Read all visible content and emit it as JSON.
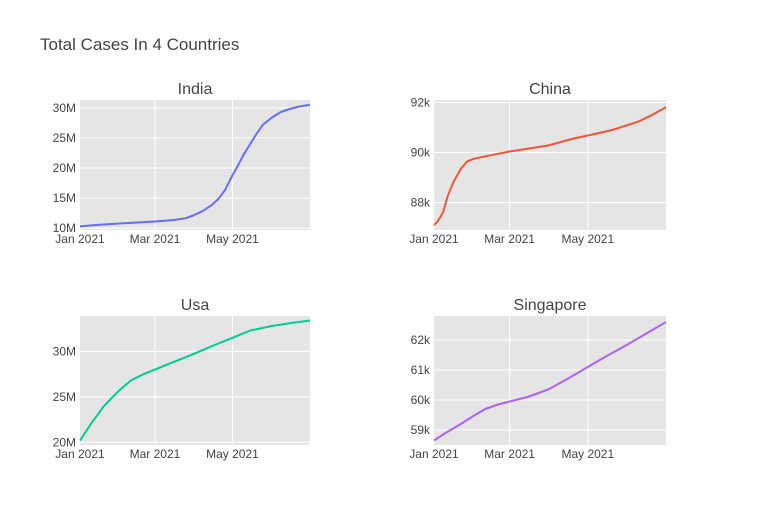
{
  "title": "Total Cases In 4 Countries",
  "colors": {
    "plot_bg": "#e5e5e5",
    "grid": "#ffffff",
    "text": "#444444"
  },
  "chart_data": [
    {
      "type": "line",
      "title": "India",
      "color": "#636efa",
      "x_tick_labels": [
        "Jan 2021",
        "Mar 2021",
        "May 2021"
      ],
      "y_tick_labels": [
        "10M",
        "15M",
        "20M",
        "25M",
        "30M"
      ],
      "y_ticks": [
        10000000,
        15000000,
        20000000,
        25000000,
        30000000
      ],
      "x_range": [
        "2021-01-01",
        "2021-07-01"
      ],
      "y_range": [
        9700000,
        31300000
      ],
      "x": [
        "2021-01-01",
        "2021-01-15",
        "2021-02-01",
        "2021-02-15",
        "2021-03-01",
        "2021-03-15",
        "2021-03-25",
        "2021-04-01",
        "2021-04-08",
        "2021-04-15",
        "2021-04-20",
        "2021-04-25",
        "2021-05-01",
        "2021-05-05",
        "2021-05-10",
        "2021-05-15",
        "2021-05-20",
        "2021-05-25",
        "2021-06-01",
        "2021-06-08",
        "2021-06-15",
        "2021-06-22",
        "2021-07-01"
      ],
      "y": [
        10300000,
        10550000,
        10780000,
        10950000,
        11120000,
        11350000,
        11650000,
        12200000,
        12900000,
        13900000,
        14900000,
        16300000,
        18800000,
        20300000,
        22300000,
        24000000,
        25700000,
        27200000,
        28400000,
        29300000,
        29800000,
        30200000,
        30500000
      ]
    },
    {
      "type": "line",
      "title": "China",
      "color": "#ef553b",
      "x_tick_labels": [
        "Jan 2021",
        "Mar 2021",
        "May 2021"
      ],
      "y_tick_labels": [
        "88k",
        "90k",
        "92k"
      ],
      "y_ticks": [
        88000,
        90000,
        92000
      ],
      "x_range": [
        "2021-01-01",
        "2021-07-01"
      ],
      "y_range": [
        86900,
        92100
      ],
      "x": [
        "2021-01-01",
        "2021-01-04",
        "2021-01-08",
        "2021-01-12",
        "2021-01-16",
        "2021-01-22",
        "2021-01-27",
        "2021-02-01",
        "2021-02-10",
        "2021-02-20",
        "2021-03-01",
        "2021-03-15",
        "2021-03-31",
        "2021-04-10",
        "2021-04-20",
        "2021-05-01",
        "2021-05-10",
        "2021-05-20",
        "2021-05-31",
        "2021-06-10",
        "2021-06-20",
        "2021-06-30",
        "2021-07-01"
      ],
      "y": [
        87100,
        87250,
        87600,
        88300,
        88800,
        89350,
        89650,
        89750,
        89850,
        89950,
        90040,
        90150,
        90280,
        90420,
        90560,
        90680,
        90780,
        90900,
        91080,
        91250,
        91500,
        91780,
        91830
      ]
    },
    {
      "type": "line",
      "title": "Usa",
      "color": "#00cc96",
      "x_tick_labels": [
        "Jan 2021",
        "Mar 2021",
        "May 2021"
      ],
      "y_tick_labels": [
        "20M",
        "25M",
        "30M"
      ],
      "y_ticks": [
        20000000,
        25000000,
        30000000
      ],
      "x_range": [
        "2021-01-01",
        "2021-07-01"
      ],
      "y_range": [
        19700000,
        33900000
      ],
      "x": [
        "2021-01-01",
        "2021-01-10",
        "2021-01-20",
        "2021-01-31",
        "2021-02-10",
        "2021-02-20",
        "2021-03-01",
        "2021-03-15",
        "2021-03-31",
        "2021-04-15",
        "2021-05-01",
        "2021-05-15",
        "2021-06-01",
        "2021-06-15",
        "2021-07-01"
      ],
      "y": [
        20200000,
        22100000,
        24000000,
        25600000,
        26800000,
        27500000,
        28000000,
        28800000,
        29700000,
        30600000,
        31500000,
        32300000,
        32800000,
        33100000,
        33400000
      ]
    },
    {
      "type": "line",
      "title": "Singapore",
      "color": "#ab63fa",
      "x_tick_labels": [
        "Jan 2021",
        "Mar 2021",
        "May 2021"
      ],
      "y_tick_labels": [
        "59k",
        "60k",
        "61k",
        "62k"
      ],
      "y_ticks": [
        59000,
        60000,
        61000,
        62000
      ],
      "x_range": [
        "2021-01-01",
        "2021-07-01"
      ],
      "y_range": [
        58500,
        62800
      ],
      "x": [
        "2021-01-01",
        "2021-01-10",
        "2021-01-20",
        "2021-01-31",
        "2021-02-10",
        "2021-02-20",
        "2021-03-01",
        "2021-03-15",
        "2021-03-31",
        "2021-04-15",
        "2021-05-01",
        "2021-05-15",
        "2021-06-01",
        "2021-06-15",
        "2021-07-01"
      ],
      "y": [
        58650,
        58900,
        59150,
        59450,
        59700,
        59850,
        59950,
        60100,
        60350,
        60700,
        61100,
        61450,
        61850,
        62200,
        62600
      ]
    }
  ]
}
